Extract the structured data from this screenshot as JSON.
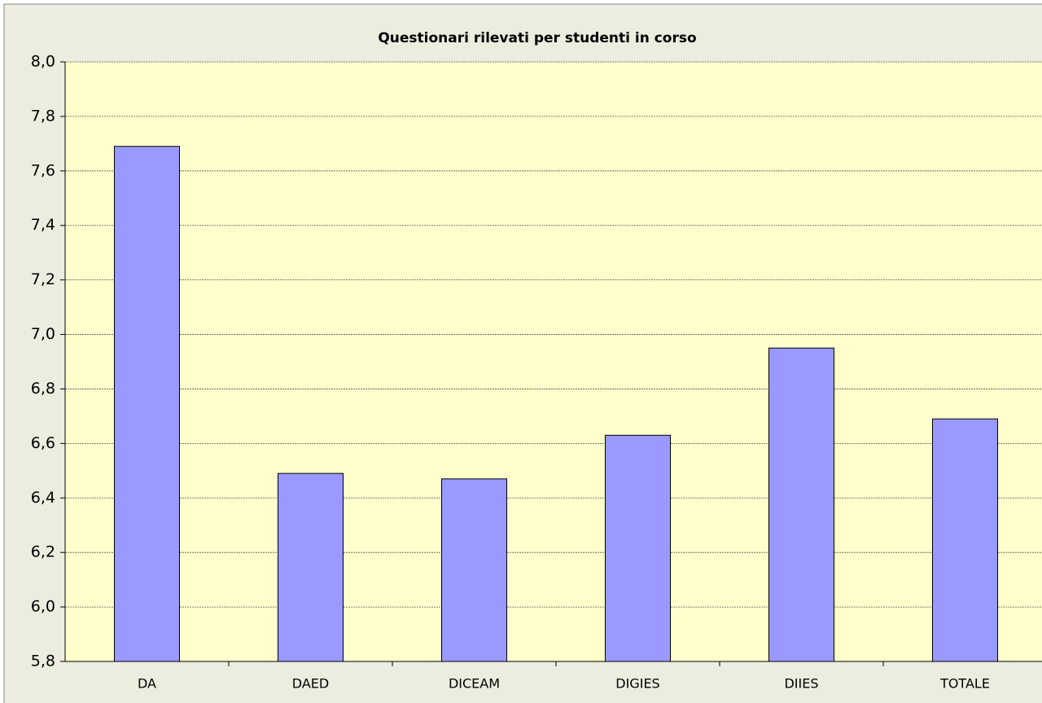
{
  "chart_data": {
    "type": "bar",
    "title": "Questionari rilevati per studenti in corso",
    "categories": [
      "DA",
      "DAED",
      "DICEAM",
      "DIGIES",
      "DIIES",
      "TOTALE"
    ],
    "values": [
      7.69,
      6.49,
      6.47,
      6.63,
      6.95,
      6.69
    ],
    "color": "#9999ff",
    "ylim": [
      5.8,
      8.0
    ],
    "yticks": [
      {
        "value": 5.8,
        "label": "5,8"
      },
      {
        "value": 6.0,
        "label": "6,0"
      },
      {
        "value": 6.2,
        "label": "6,2"
      },
      {
        "value": 6.4,
        "label": "6,4"
      },
      {
        "value": 6.6,
        "label": "6,6"
      },
      {
        "value": 6.8,
        "label": "6,8"
      },
      {
        "value": 7.0,
        "label": "7,0"
      },
      {
        "value": 7.2,
        "label": "7,2"
      },
      {
        "value": 7.4,
        "label": "7,4"
      },
      {
        "value": 7.6,
        "label": "7,6"
      },
      {
        "value": 7.8,
        "label": "7,8"
      },
      {
        "value": 8.0,
        "label": "8,0"
      }
    ],
    "grid": true
  }
}
